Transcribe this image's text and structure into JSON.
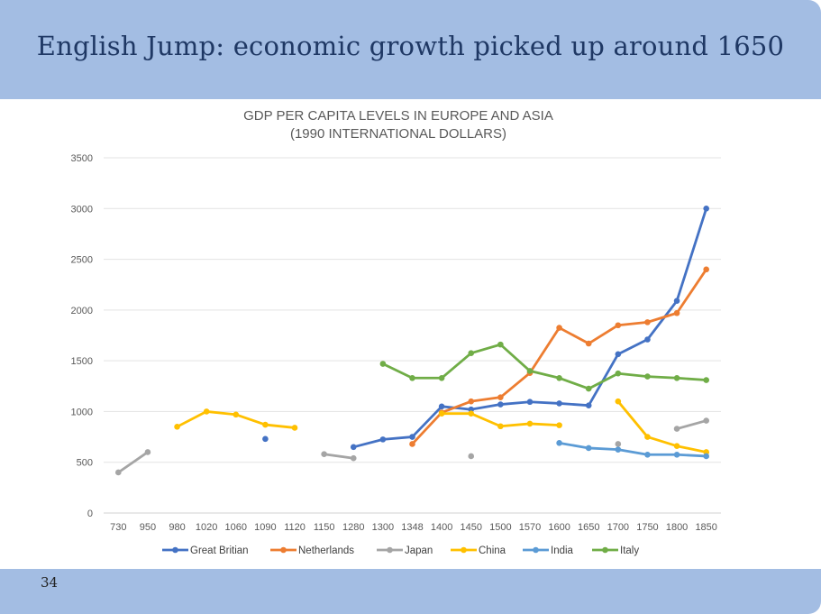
{
  "slide": {
    "title": "English Jump: economic growth picked up around 1650",
    "page_number": "34"
  },
  "chart_data": {
    "type": "line",
    "title_line1": "GDP PER CAPITA LEVELS IN EUROPE AND ASIA",
    "title_line2": "(1990 INTERNATIONAL DOLLARS)",
    "categories": [
      "730",
      "950",
      "980",
      "1020",
      "1060",
      "1090",
      "1120",
      "1150",
      "1280",
      "1300",
      "1348",
      "1400",
      "1450",
      "1500",
      "1570",
      "1600",
      "1650",
      "1700",
      "1750",
      "1800",
      "1850"
    ],
    "ylim": [
      0,
      3500
    ],
    "yticks": [
      0,
      500,
      1000,
      1500,
      2000,
      2500,
      3000,
      3500
    ],
    "grid": true,
    "legend_position": "bottom",
    "series": [
      {
        "name": "Great Britian",
        "color": "#4472c4",
        "values": [
          null,
          null,
          null,
          null,
          null,
          730,
          null,
          null,
          650,
          725,
          750,
          1050,
          1020,
          1070,
          1095,
          1080,
          1060,
          1565,
          1710,
          2090,
          3000
        ]
      },
      {
        "name": "Netherlands",
        "color": "#ed7d31",
        "values": [
          null,
          null,
          null,
          null,
          null,
          null,
          null,
          null,
          null,
          null,
          680,
          990,
          1100,
          1140,
          1380,
          1825,
          1670,
          1850,
          1880,
          1970,
          2400
        ]
      },
      {
        "name": "Japan",
        "color": "#a5a5a5",
        "values": [
          400,
          600,
          null,
          null,
          null,
          null,
          null,
          580,
          540,
          null,
          null,
          null,
          560,
          null,
          null,
          null,
          null,
          680,
          null,
          830,
          910
        ]
      },
      {
        "name": "China",
        "color": "#ffc000",
        "values": [
          null,
          null,
          850,
          1000,
          970,
          870,
          840,
          null,
          null,
          null,
          null,
          980,
          980,
          855,
          880,
          865,
          null,
          1100,
          750,
          660,
          600
        ]
      },
      {
        "name": "India",
        "color": "#5b9bd5",
        "values": [
          null,
          null,
          null,
          null,
          null,
          null,
          null,
          null,
          null,
          null,
          null,
          null,
          null,
          null,
          null,
          690,
          640,
          625,
          575,
          575,
          560
        ]
      },
      {
        "name": "Italy",
        "color": "#70ad47",
        "values": [
          null,
          null,
          null,
          null,
          null,
          null,
          null,
          null,
          null,
          1470,
          1330,
          1330,
          1575,
          1660,
          1400,
          1330,
          1225,
          1375,
          1345,
          1330,
          1310
        ]
      }
    ]
  }
}
